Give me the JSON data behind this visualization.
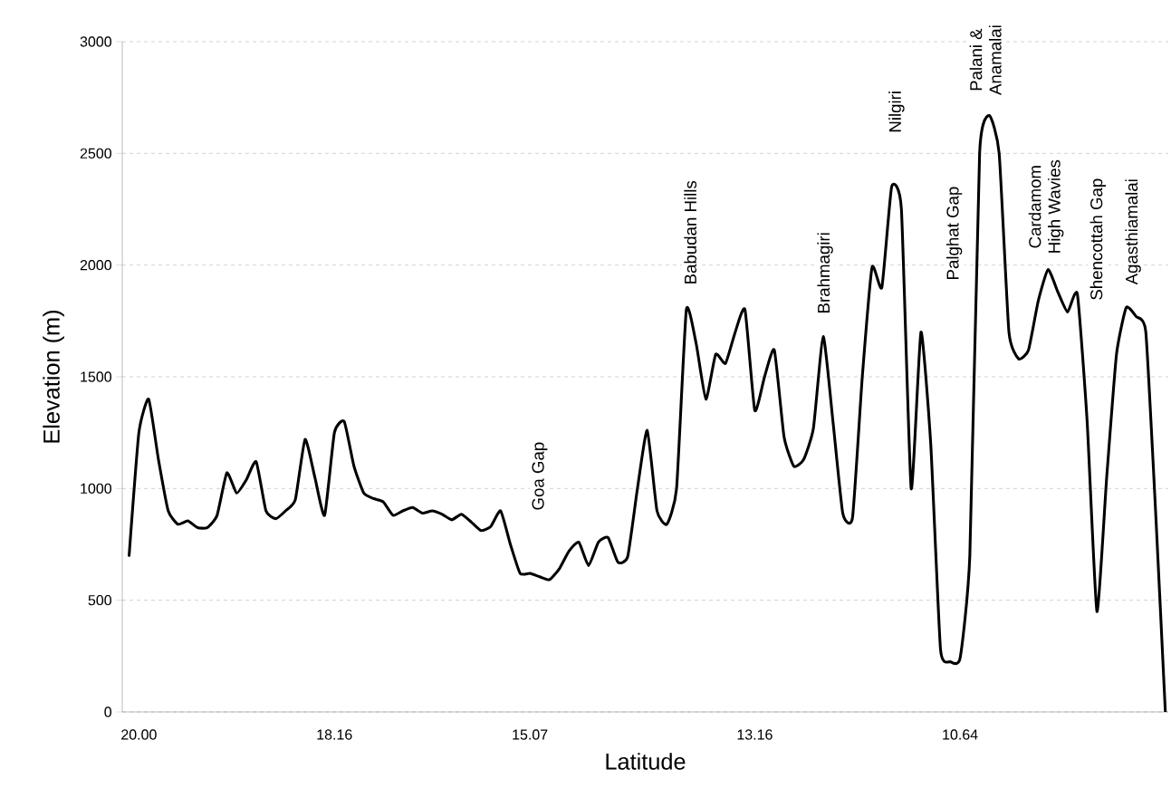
{
  "chart_data": {
    "type": "line",
    "xlabel": "Latitude",
    "ylabel": "Elevation (m)",
    "color": "#000000",
    "marker": "none",
    "line_style": "solid",
    "grid": "y",
    "categories": [
      null,
      "20.00",
      null,
      null,
      null,
      null,
      null,
      null,
      null,
      null,
      null,
      null,
      null,
      null,
      null,
      null,
      null,
      null,
      null,
      null,
      null,
      "18.16",
      null,
      null,
      null,
      null,
      null,
      null,
      null,
      null,
      null,
      null,
      null,
      null,
      null,
      null,
      null,
      null,
      null,
      null,
      null,
      "15.07",
      null,
      null,
      null,
      null,
      null,
      null,
      null,
      null,
      null,
      null,
      null,
      null,
      null,
      null,
      null,
      null,
      null,
      null,
      null,
      null,
      null,
      null,
      "13.16",
      null,
      null,
      null,
      null,
      null,
      null,
      null,
      null,
      null,
      null,
      null,
      null,
      null,
      null,
      null,
      null,
      null,
      null,
      null,
      null,
      "10.64",
      null,
      null,
      null,
      null,
      null,
      null,
      null,
      null,
      null,
      null,
      null,
      null,
      null,
      null,
      null,
      null,
      null,
      null,
      null,
      null,
      null
    ],
    "values": [
      700,
      1250,
      1400,
      1130,
      900,
      840,
      855,
      825,
      825,
      880,
      1070,
      980,
      1040,
      1120,
      900,
      865,
      900,
      950,
      1220,
      1050,
      880,
      1250,
      1300,
      1100,
      980,
      955,
      940,
      880,
      900,
      915,
      890,
      900,
      885,
      860,
      885,
      850,
      812,
      830,
      900,
      750,
      620,
      620,
      605,
      592,
      640,
      720,
      760,
      655,
      760,
      780,
      670,
      695,
      1000,
      1260,
      900,
      840,
      1000,
      1800,
      1650,
      1400,
      1600,
      1560,
      1700,
      1800,
      1350,
      1500,
      1620,
      1230,
      1100,
      1130,
      1270,
      1680,
      1300,
      890,
      870,
      1500,
      1990,
      1900,
      2350,
      2250,
      1000,
      1700,
      1200,
      280,
      225,
      240,
      700,
      2500,
      2670,
      2500,
      1700,
      1580,
      1620,
      1840,
      1980,
      1880,
      1790,
      1870,
      1300,
      450,
      1050,
      1600,
      1810,
      1770,
      1700,
      900,
      0
    ],
    "ylim": [
      0,
      3000
    ],
    "yticks": [
      0,
      500,
      1000,
      1500,
      2000,
      2500,
      3000
    ],
    "annotations": [
      "Goa Gap",
      "Babudan Hills",
      "Brahmagiri",
      "Nilgiri",
      "Palghat Gap",
      "Palani & Anamalai",
      "Cardamom High Wavies",
      "Shencottah Gap",
      "Agasthiamalai"
    ]
  }
}
